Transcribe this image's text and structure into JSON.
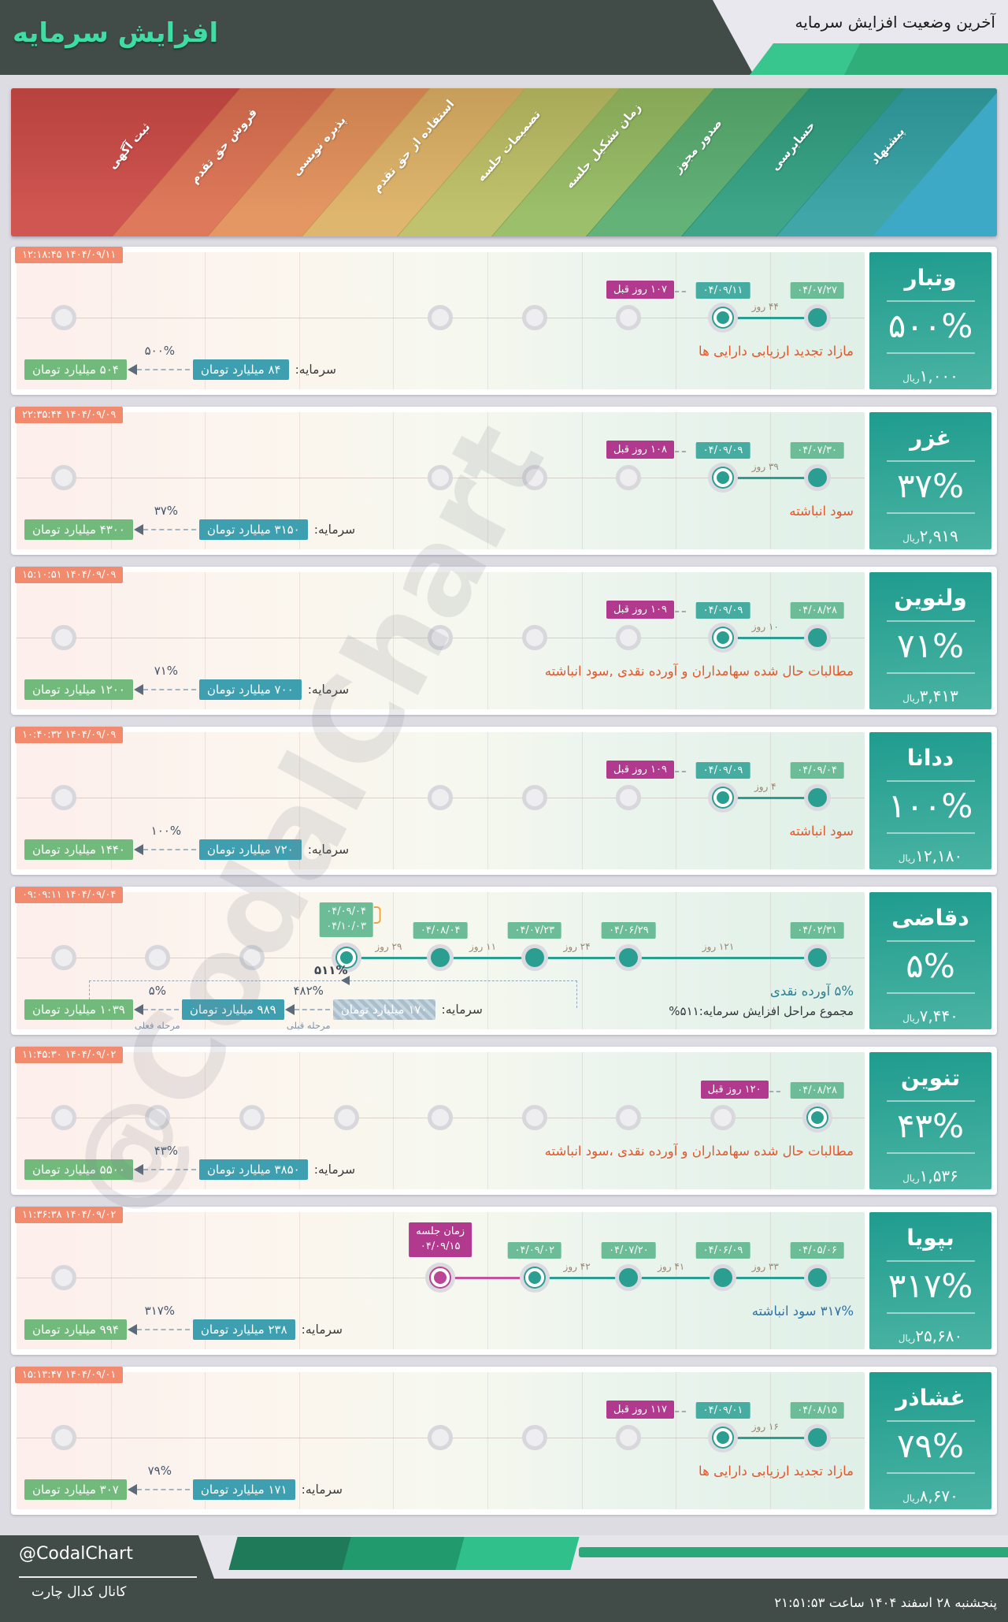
{
  "header": {
    "title": "افزایش سرمایه",
    "subtitle": "آخرین وضعیت افزایش سرمایه"
  },
  "watermark": "@CodalChart",
  "stages": [
    {
      "label": "ثبت آگهی",
      "color": "#cc4944"
    },
    {
      "label": "فروش حق تقدم",
      "color": "#dc6f4f"
    },
    {
      "label": "پذیره نویسی",
      "color": "#e28e57"
    },
    {
      "label": "استفاده از حق تقدم",
      "color": "#ddb063"
    },
    {
      "label": "تصمیمات جلسه",
      "color": "#bcbd62"
    },
    {
      "label": "زمان تشکیل جلسه",
      "color": "#94ba60"
    },
    {
      "label": "صدور مجوز",
      "color": "#57ac6e"
    },
    {
      "label": "حسابرسی",
      "color": "#2f9e7f"
    },
    {
      "label": "پیشنهاد",
      "color": "#319fa1"
    }
  ],
  "stage_corner_color": "#3ea9c6",
  "chart_data": {
    "type": "table",
    "title": "آخرین وضعیت افزایش سرمایه",
    "stage_axis_right_to_left": [
      "پیشنهاد",
      "حسابرسی",
      "صدور مجوز",
      "زمان تشکیل جلسه",
      "تصمیمات جلسه",
      "استفاده از حق تقدم",
      "پذیره نویسی",
      "فروش حق تقدم",
      "ثبت آگهی"
    ],
    "rows": [
      {
        "symbol": "وتبار",
        "increase_pct": "۵۰۰%",
        "price_rial": "۱,۰۰۰",
        "capital_from_bn_toman": "۸۴",
        "capital_to_bn_toman": "۵۰۴",
        "source": "مازاد تجدید ارزیابی دارایی ها",
        "events": [
          [
            "پیشنهاد",
            "۰۴/۰۷/۲۷"
          ],
          [
            "حسابرسی",
            "۰۴/۰۹/۱۱"
          ]
        ]
      },
      {
        "symbol": "غزر",
        "increase_pct": "۳۷%",
        "price_rial": "۲,۹۱۹",
        "capital_from_bn_toman": "۳۱۵۰",
        "capital_to_bn_toman": "۴۳۰۰",
        "source": "سود انباشته",
        "events": [
          [
            "پیشنهاد",
            "۰۴/۰۷/۳۰"
          ],
          [
            "حسابرسی",
            "۰۴/۰۹/۰۹"
          ]
        ]
      },
      {
        "symbol": "ولنوین",
        "increase_pct": "۷۱%",
        "price_rial": "۳,۴۱۳",
        "capital_from_bn_toman": "۷۰۰",
        "capital_to_bn_toman": "۱۲۰۰",
        "source": "مطالبات حال شده سهامداران و آورده نقدی ,سود انباشته",
        "events": [
          [
            "پیشنهاد",
            "۰۴/۰۸/۲۸"
          ],
          [
            "حسابرسی",
            "۰۴/۰۹/۰۹"
          ]
        ]
      },
      {
        "symbol": "ددانا",
        "increase_pct": "۱۰۰%",
        "price_rial": "۱۲,۱۸۰",
        "capital_from_bn_toman": "۷۲۰",
        "capital_to_bn_toman": "۱۴۴۰",
        "source": "سود انباشته",
        "events": [
          [
            "پیشنهاد",
            "۰۴/۰۹/۰۴"
          ],
          [
            "حسابرسی",
            "۰۴/۰۹/۰۹"
          ]
        ]
      },
      {
        "symbol": "دقاضی",
        "increase_pct": "۵%",
        "price_rial": "۷,۴۴۰",
        "capital_from_bn_toman": "۱۷۰",
        "capital_mid_bn_toman": "۹۸۹",
        "capital_to_bn_toman": "۱۰۳۹",
        "total_pct": "۵۱۱%",
        "source": "۵% آورده نقدی",
        "events": [
          [
            "پیشنهاد",
            "۰۴/۰۲/۳۱"
          ],
          [
            "صدور مجوز",
            "۰۴/۰۶/۲۹"
          ],
          [
            "زمان تشکیل جلسه",
            "۰۴/۰۷/۲۳"
          ],
          [
            "تصمیمات جلسه",
            "۰۴/۰۸/۰۴"
          ],
          [
            "استفاده از حق تقدم",
            "۰۴/۰۹/۰۴ تا ۰۴/۱۰/۰۳"
          ]
        ]
      },
      {
        "symbol": "تنوین",
        "increase_pct": "۴۳%",
        "price_rial": "۱,۵۳۶",
        "capital_from_bn_toman": "۳۸۵۰",
        "capital_to_bn_toman": "۵۵۰۰",
        "source": "مطالبات حال شده سهامداران و آورده نقدی ،سود انباشته",
        "events": [
          [
            "پیشنهاد",
            "۰۴/۰۸/۲۸"
          ]
        ]
      },
      {
        "symbol": "بپویا",
        "increase_pct": "۳۱۷%",
        "price_rial": "۲۵,۶۸۰",
        "capital_from_bn_toman": "۲۳۸",
        "capital_to_bn_toman": "۹۹۴",
        "source": "۳۱۷% سود انباشته",
        "events": [
          [
            "پیشنهاد",
            "۰۴/۰۵/۰۶"
          ],
          [
            "حسابرسی",
            "۰۴/۰۶/۰۹"
          ],
          [
            "صدور مجوز",
            "۰۴/۰۷/۲۰"
          ],
          [
            "زمان تشکیل جلسه",
            "۰۴/۰۹/۰۲"
          ],
          [
            "تصمیمات جلسه (زمان جلسه)",
            "۰۴/۰۹/۱۵"
          ]
        ]
      },
      {
        "symbol": "غشاذر",
        "increase_pct": "۷۹%",
        "price_rial": "۸,۶۷۰",
        "capital_from_bn_toman": "۱۷۱",
        "capital_to_bn_toman": "۳۰۷",
        "source": "مازاد تجدید ارزیابی دارایی ها",
        "events": [
          [
            "پیشنهاد",
            "۰۴/۰۸/۱۵"
          ],
          [
            "حسابرسی",
            "۰۴/۰۹/۰۱"
          ]
        ]
      }
    ]
  },
  "rows": [
    {
      "name": "وتبار",
      "pct": "۵۰۰%",
      "price": "۱,۰۰۰",
      "price_unit": "ریال",
      "timestamp": "۱۴۰۴/۰۹/۱۱ ۱۲:۱۸:۴۵",
      "days_ago": "۱۰۷ روز قبل",
      "desc": "مازاد تجدید ارزیابی دارایی ها",
      "desc_color": "orange",
      "inactive": [
        1,
        5,
        6,
        7
      ],
      "events": [
        {
          "col": 9,
          "date": "۰۴/۰۷/۲۷",
          "interval": "۴۴ روز"
        },
        {
          "col": 8,
          "date": "۰۴/۰۹/۱۱",
          "current": true,
          "hl": true
        }
      ],
      "capital": {
        "label": "سرمایه:",
        "from": "۸۴ میلیارد تومان",
        "pct": "۵۰۰%",
        "to": "۵۰۴ میلیارد تومان"
      }
    },
    {
      "name": "غزر",
      "pct": "۳۷%",
      "price": "۲,۹۱۹",
      "price_unit": "ریال",
      "timestamp": "۱۴۰۴/۰۹/۰۹ ۲۲:۳۵:۴۴",
      "days_ago": "۱۰۸ روز قبل",
      "desc": "سود انباشته",
      "desc_color": "orange",
      "inactive": [
        1,
        5,
        6,
        7
      ],
      "events": [
        {
          "col": 9,
          "date": "۰۴/۰۷/۳۰",
          "interval": "۳۹ روز"
        },
        {
          "col": 8,
          "date": "۰۴/۰۹/۰۹",
          "current": true,
          "hl": true
        }
      ],
      "capital": {
        "label": "سرمایه:",
        "from": "۳۱۵۰ میلیارد تومان",
        "pct": "۳۷%",
        "to": "۴۳۰۰ میلیارد تومان"
      }
    },
    {
      "name": "ولنوین",
      "pct": "۷۱%",
      "price": "۳,۴۱۳",
      "price_unit": "ریال",
      "timestamp": "۱۴۰۴/۰۹/۰۹ ۱۵:۱۰:۵۱",
      "days_ago": "۱۰۹ روز قبل",
      "desc": "مطالبات حال شده سهامداران و آورده نقدی ,سود انباشته",
      "desc_color": "orange",
      "inactive": [
        1,
        5,
        6,
        7
      ],
      "events": [
        {
          "col": 9,
          "date": "۰۴/۰۸/۲۸",
          "interval": "۱۰ روز"
        },
        {
          "col": 8,
          "date": "۰۴/۰۹/۰۹",
          "current": true,
          "hl": true
        }
      ],
      "capital": {
        "label": "سرمایه:",
        "from": "۷۰۰ میلیارد تومان",
        "pct": "۷۱%",
        "to": "۱۲۰۰ میلیارد تومان"
      }
    },
    {
      "name": "ددانا",
      "pct": "۱۰۰%",
      "price": "۱۲,۱۸۰",
      "price_unit": "ریال",
      "timestamp": "۱۴۰۴/۰۹/۰۹ ۱۰:۴۰:۳۲",
      "days_ago": "۱۰۹ روز قبل",
      "desc": "سود انباشته",
      "desc_color": "orange",
      "inactive": [
        1,
        5,
        6,
        7
      ],
      "events": [
        {
          "col": 9,
          "date": "۰۴/۰۹/۰۴",
          "interval": "۴ روز"
        },
        {
          "col": 8,
          "date": "۰۴/۰۹/۰۹",
          "current": true,
          "hl": true
        }
      ],
      "capital": {
        "label": "سرمایه:",
        "from": "۷۲۰ میلیارد تومان",
        "pct": "۱۰۰%",
        "to": "۱۴۴۰ میلیارد تومان"
      }
    },
    {
      "name": "دقاضی",
      "pct": "۵%",
      "price": "۷,۴۴۰",
      "price_unit": "ریال",
      "timestamp": "۱۴۰۴/۰۹/۰۴ ۰۹:۰۹:۱۱",
      "desc": "۵% آورده نقدی",
      "desc_color": "teal",
      "desc2": "مجموع مراحل افزایش سرمایه:۵۱۱%",
      "inactive": [
        1,
        2,
        3
      ],
      "events": [
        {
          "col": 9,
          "date": "۰۴/۰۲/۳۱",
          "interval": "۱۲۱ روز"
        },
        {
          "col": 7,
          "date": "۰۴/۰۶/۲۹",
          "interval": "۲۴ روز"
        },
        {
          "col": 6,
          "date": "۰۴/۰۷/۲۳",
          "interval": "۱۱ روز"
        },
        {
          "col": 5,
          "date": "۰۴/۰۸/۰۴",
          "interval": "۲۹ روز"
        },
        {
          "col": 4,
          "date": "۰۴/۰۹/۰۴",
          "date2": "۰۴/۱۰/۰۳",
          "current": true
        }
      ],
      "capital": {
        "label": "سرمایه:",
        "from": "۱۷۰ میلیارد تومان",
        "hatched": true,
        "prev_pct": "۴۸۲%",
        "prev_label": "مرحله قبلی",
        "mid": "۹۸۹ میلیارد تومان",
        "pct": "۵%",
        "cur_label": "مرحله فعلی",
        "to": "۱۰۳۹ میلیارد تومان",
        "total": "۵۱۱%"
      }
    },
    {
      "name": "تنوین",
      "pct": "۴۳%",
      "price": "۱,۵۳۶",
      "price_unit": "ریال",
      "timestamp": "۱۴۰۴/۰۹/۰۲ ۱۱:۴۵:۳۰",
      "days_ago": "۱۲۰ روز قبل",
      "desc": "مطالبات حال شده سهامداران و آورده نقدی ،سود انباشته",
      "desc_color": "orange",
      "inactive": [
        1,
        2,
        3,
        4,
        5,
        6,
        7,
        8
      ],
      "events": [
        {
          "col": 9,
          "date": "۰۴/۰۸/۲۸",
          "current": true
        }
      ],
      "capital": {
        "label": "سرمایه:",
        "from": "۳۸۵۰ میلیارد تومان",
        "pct": "۴۳%",
        "to": "۵۵۰۰ میلیارد تومان"
      }
    },
    {
      "name": "بپویا",
      "pct": "۳۱۷%",
      "price": "۲۵,۶۸۰",
      "price_unit": "ریال",
      "timestamp": "۱۴۰۴/۰۹/۰۲ ۱۱:۳۶:۳۸",
      "desc": "۳۱۷% سود انباشته",
      "desc_color": "blue",
      "inactive": [
        1
      ],
      "events": [
        {
          "col": 9,
          "date": "۰۴/۰۵/۰۶",
          "interval": "۳۳ روز"
        },
        {
          "col": 8,
          "date": "۰۴/۰۶/۰۹",
          "interval": "۴۱ روز"
        },
        {
          "col": 7,
          "date": "۰۴/۰۷/۲۰",
          "interval": "۴۲ روز"
        },
        {
          "col": 6,
          "date": "۰۴/۰۹/۰۲",
          "current": true
        },
        {
          "col": 5,
          "date": "۰۴/۰۹/۱۵",
          "label": "زمان جلسه",
          "future": true
        }
      ],
      "capital": {
        "label": "سرمایه:",
        "from": "۲۳۸ میلیارد تومان",
        "pct": "۳۱۷%",
        "to": "۹۹۴ میلیارد تومان"
      }
    },
    {
      "name": "غشاذر",
      "pct": "۷۹%",
      "price": "۸,۶۷۰",
      "price_unit": "ریال",
      "timestamp": "۱۴۰۴/۰۹/۰۱ ۱۵:۱۳:۴۷",
      "days_ago": "۱۱۷ روز قبل",
      "desc": "مازاد تجدید ارزیابی دارایی ها",
      "desc_color": "orange",
      "inactive": [
        1,
        5,
        6,
        7
      ],
      "events": [
        {
          "col": 9,
          "date": "۰۴/۰۸/۱۵",
          "interval": "۱۶ روز"
        },
        {
          "col": 8,
          "date": "۰۴/۰۹/۰۱",
          "current": true,
          "hl": true
        }
      ],
      "capital": {
        "label": "سرمایه:",
        "from": "۱۷۱ میلیارد تومان",
        "pct": "۷۹%",
        "to": "۳۰۷ میلیارد تومان"
      }
    }
  ],
  "footer": {
    "handle": "@CodalChart",
    "channel": "کانال کدال چارت",
    "datetime": "پنجشنبه ۲۸ اسفند ۱۴۰۴ ساعت ۲۱:۵۱:۵۳",
    "shape_colors": [
      "#1e7a58",
      "#219a6e",
      "#2fc08c"
    ]
  }
}
